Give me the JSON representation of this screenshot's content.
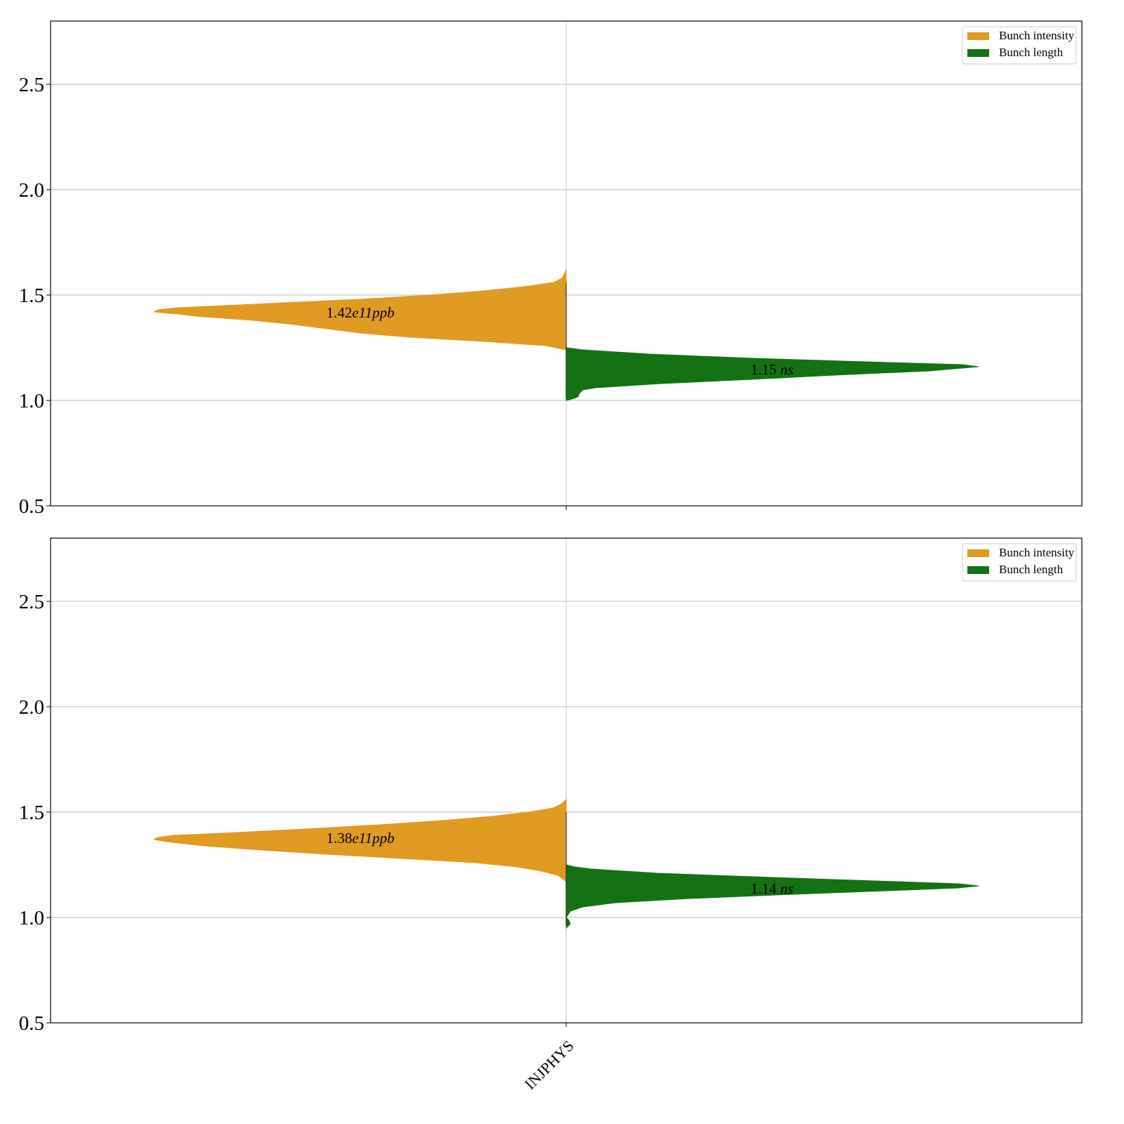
{
  "colors": {
    "intensity": "#DF9A22",
    "length": "#147114",
    "grid": "#c8c8c8",
    "frame": "#000000"
  },
  "chart_data": [
    {
      "type": "violin",
      "category": "INJPHYS",
      "ylim": [
        0.5,
        2.8
      ],
      "yticks": [
        "0.5",
        "1.0",
        "1.5",
        "2.0",
        "2.5"
      ],
      "grid": "y",
      "legend_position": "top-right",
      "legend": [
        "Bunch intensity",
        "Bunch length"
      ],
      "series": [
        {
          "name": "Bunch intensity",
          "side": "left",
          "median": 1.42,
          "annotation": {
            "base": "1.42",
            "exp": "e11",
            "unit": "ppb"
          },
          "profile": [
            [
              1.24,
              0.0
            ],
            [
              1.26,
              0.05
            ],
            [
              1.28,
              0.2
            ],
            [
              1.3,
              0.38
            ],
            [
              1.32,
              0.5
            ],
            [
              1.34,
              0.58
            ],
            [
              1.36,
              0.66
            ],
            [
              1.38,
              0.76
            ],
            [
              1.4,
              0.9
            ],
            [
              1.41,
              0.94
            ],
            [
              1.42,
              1.0
            ],
            [
              1.43,
              0.99
            ],
            [
              1.44,
              0.94
            ],
            [
              1.46,
              0.72
            ],
            [
              1.48,
              0.5
            ],
            [
              1.5,
              0.33
            ],
            [
              1.52,
              0.2
            ],
            [
              1.54,
              0.1
            ],
            [
              1.56,
              0.03
            ],
            [
              1.58,
              0.01
            ],
            [
              1.62,
              0.0
            ]
          ]
        },
        {
          "name": "Bunch length",
          "side": "right",
          "median": 1.15,
          "annotation": {
            "base": "1.15",
            "exp": "",
            "unit": "ns"
          },
          "profile": [
            [
              1.0,
              0.0
            ],
            [
              1.01,
              0.02
            ],
            [
              1.02,
              0.03
            ],
            [
              1.03,
              0.03
            ],
            [
              1.04,
              0.035
            ],
            [
              1.05,
              0.04
            ],
            [
              1.06,
              0.07
            ],
            [
              1.08,
              0.23
            ],
            [
              1.1,
              0.45
            ],
            [
              1.12,
              0.65
            ],
            [
              1.14,
              0.88
            ],
            [
              1.16,
              1.0
            ],
            [
              1.17,
              0.96
            ],
            [
              1.18,
              0.78
            ],
            [
              1.2,
              0.45
            ],
            [
              1.22,
              0.2
            ],
            [
              1.24,
              0.04
            ],
            [
              1.25,
              0.0
            ]
          ]
        }
      ]
    },
    {
      "type": "violin",
      "category": "INJPHYS",
      "ylim": [
        0.5,
        2.8
      ],
      "yticks": [
        "0.5",
        "1.0",
        "1.5",
        "2.0",
        "2.5"
      ],
      "grid": "y",
      "legend_position": "top-right",
      "legend": [
        "Bunch intensity",
        "Bunch length"
      ],
      "xticklabel": "INJPHYS",
      "series": [
        {
          "name": "Bunch intensity",
          "side": "left",
          "median": 1.38,
          "annotation": {
            "base": "1.38",
            "exp": "e11",
            "unit": "ppb"
          },
          "profile": [
            [
              1.17,
              0.0
            ],
            [
              1.2,
              0.02
            ],
            [
              1.22,
              0.06
            ],
            [
              1.24,
              0.12
            ],
            [
              1.26,
              0.22
            ],
            [
              1.28,
              0.4
            ],
            [
              1.3,
              0.58
            ],
            [
              1.32,
              0.74
            ],
            [
              1.34,
              0.88
            ],
            [
              1.36,
              0.97
            ],
            [
              1.37,
              1.0
            ],
            [
              1.38,
              0.99
            ],
            [
              1.39,
              0.95
            ],
            [
              1.4,
              0.83
            ],
            [
              1.42,
              0.63
            ],
            [
              1.44,
              0.45
            ],
            [
              1.46,
              0.3
            ],
            [
              1.48,
              0.18
            ],
            [
              1.5,
              0.09
            ],
            [
              1.52,
              0.03
            ],
            [
              1.54,
              0.01
            ],
            [
              1.56,
              0.0
            ]
          ]
        },
        {
          "name": "Bunch length",
          "side": "right",
          "median": 1.14,
          "annotation": {
            "base": "1.14",
            "exp": "",
            "unit": "ns"
          },
          "profile": [
            [
              0.95,
              0.0
            ],
            [
              0.97,
              0.01
            ],
            [
              0.99,
              0.005
            ],
            [
              1.0,
              0.0
            ],
            [
              1.03,
              0.01
            ],
            [
              1.05,
              0.04
            ],
            [
              1.07,
              0.12
            ],
            [
              1.09,
              0.3
            ],
            [
              1.11,
              0.55
            ],
            [
              1.13,
              0.82
            ],
            [
              1.14,
              0.95
            ],
            [
              1.15,
              1.0
            ],
            [
              1.16,
              0.95
            ],
            [
              1.17,
              0.8
            ],
            [
              1.19,
              0.5
            ],
            [
              1.21,
              0.22
            ],
            [
              1.23,
              0.06
            ],
            [
              1.24,
              0.02
            ],
            [
              1.25,
              0.0
            ]
          ]
        }
      ]
    }
  ]
}
